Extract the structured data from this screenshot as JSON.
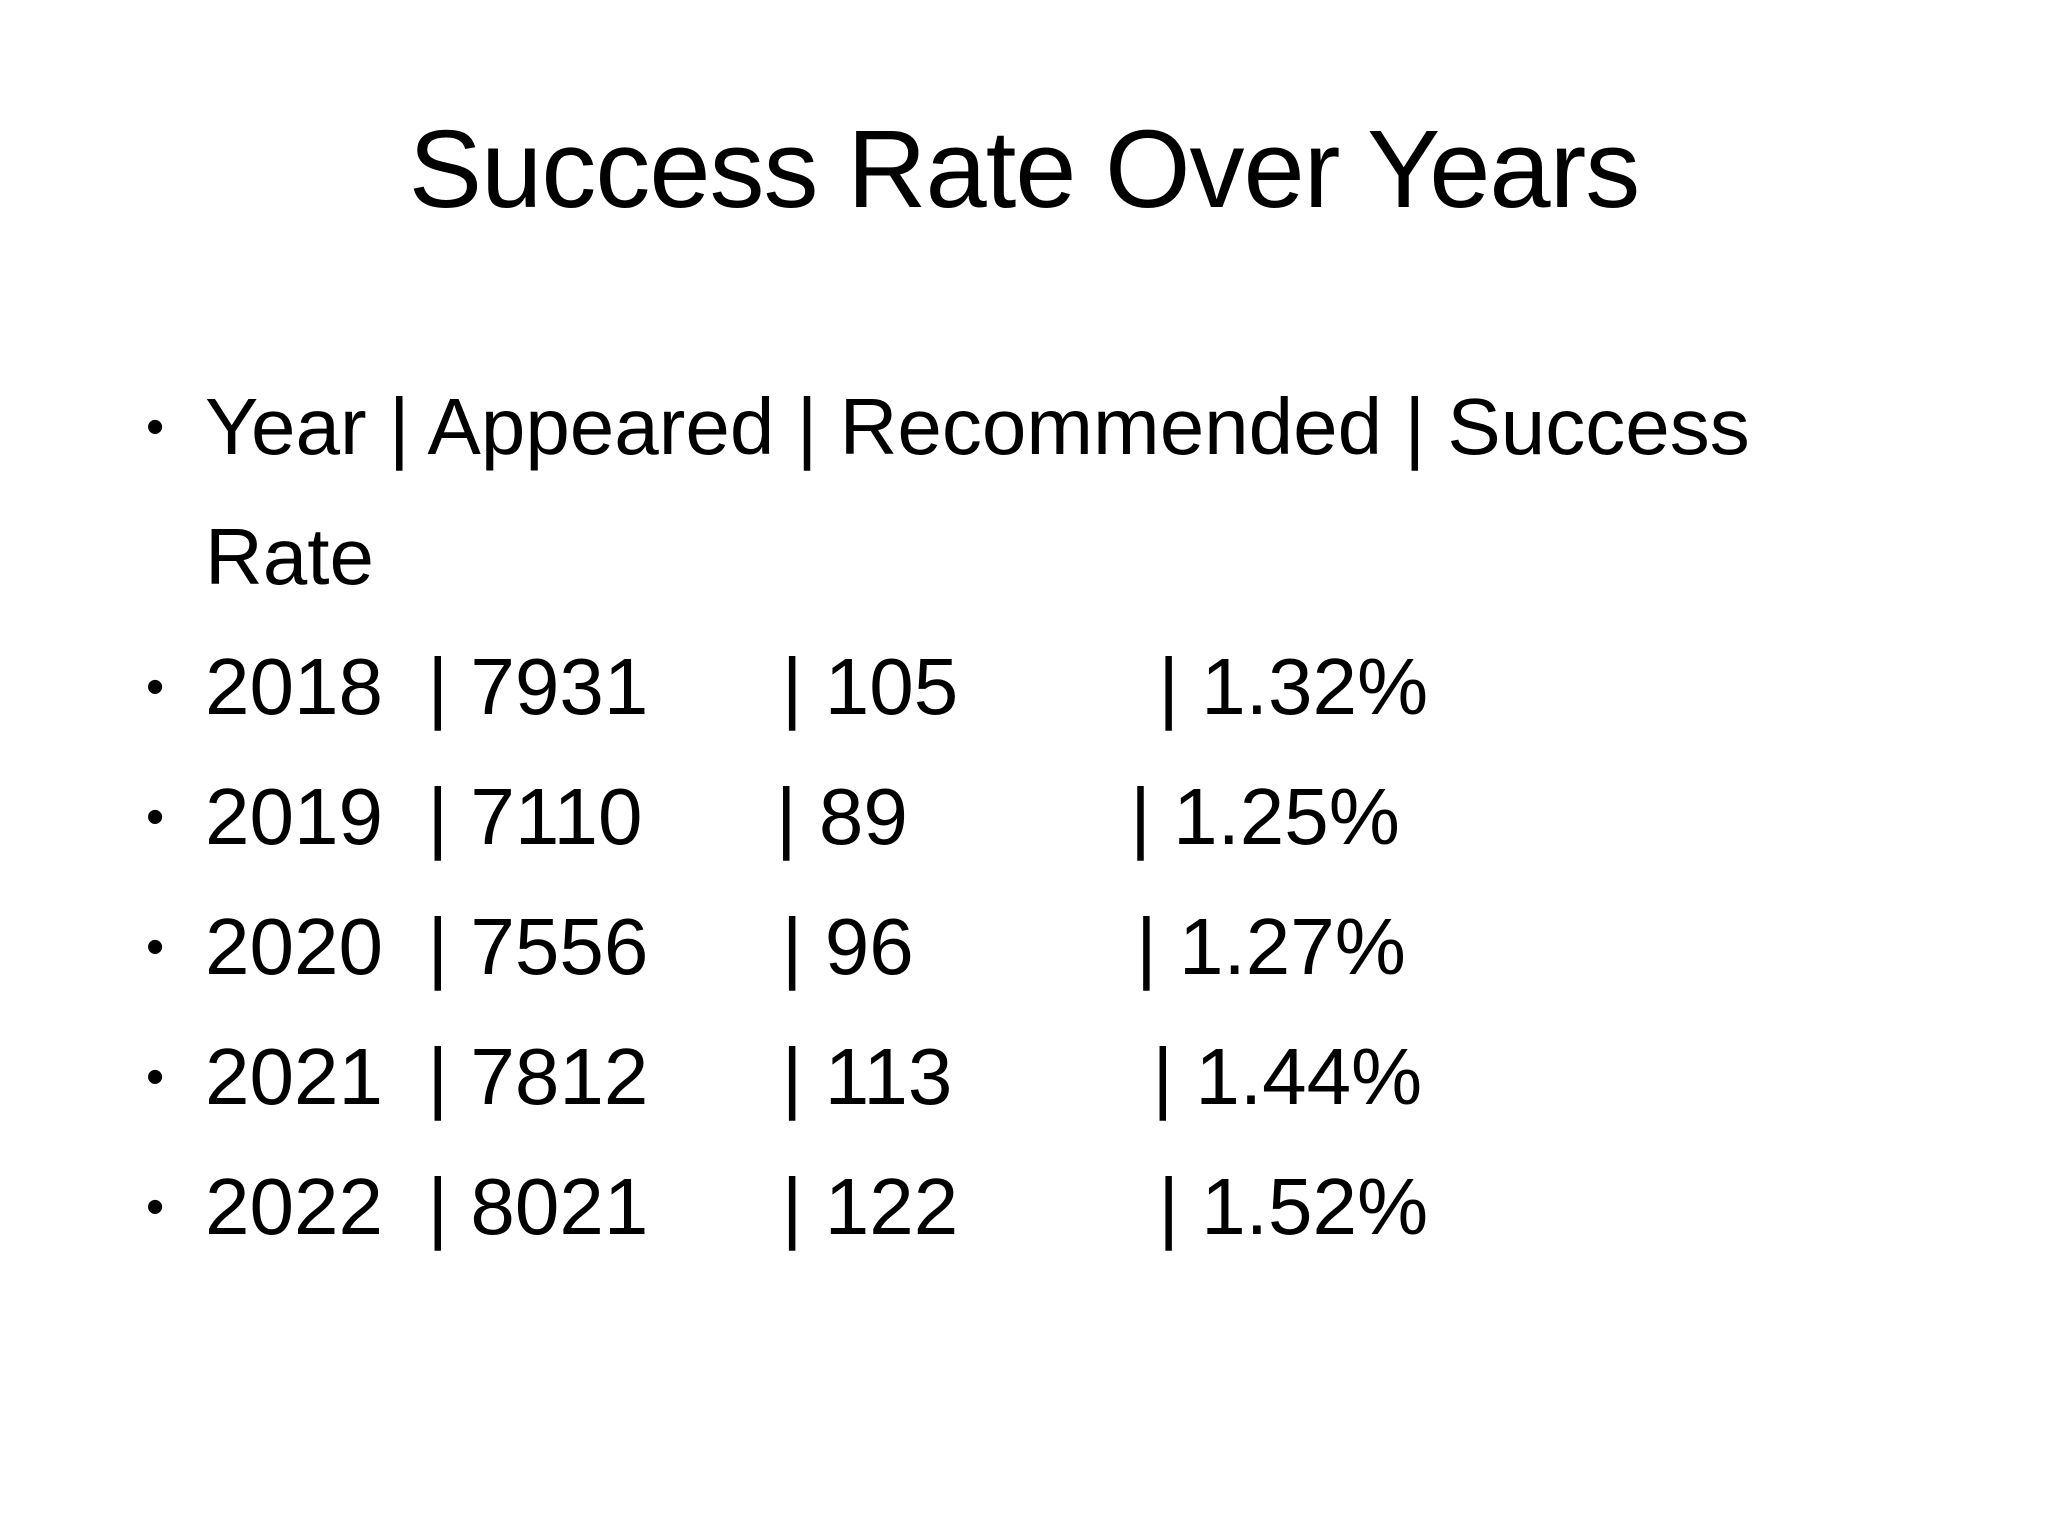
{
  "slide": {
    "title": "Success Rate Over Years",
    "bullet_char": "•",
    "bullets": [
      "Year | Appeared | Recommended | Success Rate",
      "2018  | 7931      | 105         | 1.32%",
      "2019  | 7110      | 89          | 1.25%",
      "2020  | 7556      | 96          | 1.27%",
      "2021  | 7812      | 113         | 1.44%",
      "2022  | 8021      | 122         | 1.52%"
    ]
  },
  "table": {
    "columns": [
      "Year",
      "Appeared",
      "Recommended",
      "Success Rate"
    ],
    "rows": [
      {
        "year": "2018",
        "appeared": "7931",
        "recommended": "105",
        "success_rate": "1.32%"
      },
      {
        "year": "2019",
        "appeared": "7110",
        "recommended": "89",
        "success_rate": "1.25%"
      },
      {
        "year": "2020",
        "appeared": "7556",
        "recommended": "96",
        "success_rate": "1.27%"
      },
      {
        "year": "2021",
        "appeared": "7812",
        "recommended": "113",
        "success_rate": "1.44%"
      },
      {
        "year": "2022",
        "appeared": "8021",
        "recommended": "122",
        "success_rate": "1.52%"
      }
    ]
  },
  "colors": {
    "background": "#ffffff",
    "text": "#000000"
  }
}
